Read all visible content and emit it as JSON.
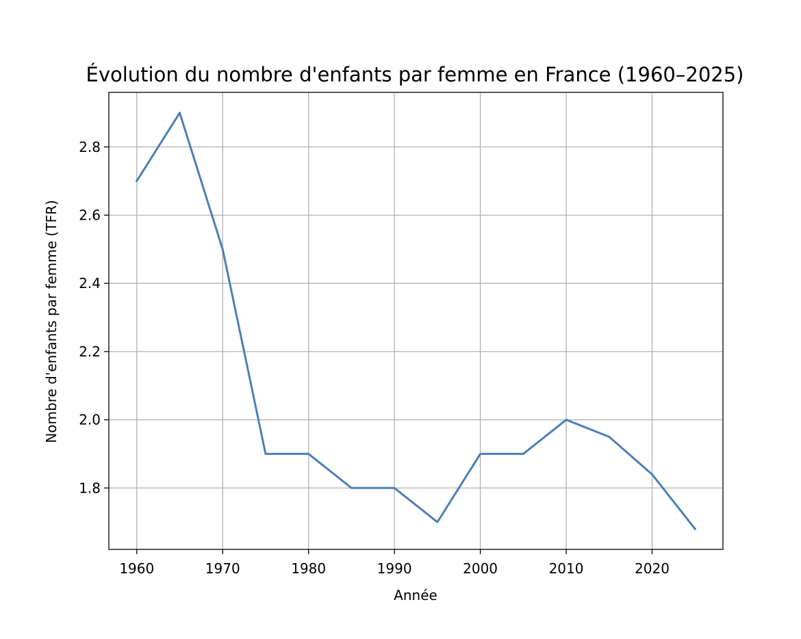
{
  "chart_data": {
    "type": "line",
    "title": "Évolution du nombre d'enfants par femme en France (1960–2025)",
    "xlabel": "Année",
    "ylabel": "Nombre d'enfants par femme (TFR)",
    "xlim": [
      1956.75,
      2028.25
    ],
    "ylim": [
      1.62,
      2.96
    ],
    "xticks": [
      1960,
      1970,
      1980,
      1990,
      2000,
      2010,
      2020
    ],
    "yticks": [
      1.8,
      2.0,
      2.2,
      2.4,
      2.6,
      2.8
    ],
    "xtick_labels": [
      "1960",
      "1970",
      "1980",
      "1990",
      "2000",
      "2010",
      "2020"
    ],
    "ytick_labels": [
      "1.8",
      "2.0",
      "2.2",
      "2.4",
      "2.6",
      "2.8"
    ],
    "grid": true,
    "x": [
      1960,
      1965,
      1970,
      1975,
      1980,
      1985,
      1990,
      1995,
      2000,
      2005,
      2010,
      2015,
      2020,
      2025
    ],
    "series": [
      {
        "color": "#4a7fb5",
        "values": [
          2.7,
          2.9,
          2.5,
          1.9,
          1.9,
          1.8,
          1.8,
          1.7,
          1.9,
          1.9,
          2.0,
          1.95,
          1.84,
          1.68
        ]
      }
    ]
  }
}
